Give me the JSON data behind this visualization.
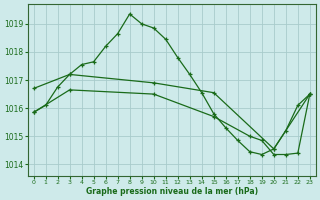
{
  "title": "Graphe pression niveau de la mer (hPa)",
  "bg_color": "#ceeaea",
  "grid_color": "#a8cccc",
  "line_color": "#1a6b1a",
  "spine_color": "#336633",
  "xlim": [
    -0.5,
    23.5
  ],
  "ylim": [
    1013.6,
    1019.7
  ],
  "yticks": [
    1014,
    1015,
    1016,
    1017,
    1018,
    1019
  ],
  "xticks": [
    0,
    1,
    2,
    3,
    4,
    5,
    6,
    7,
    8,
    9,
    10,
    11,
    12,
    13,
    14,
    15,
    16,
    17,
    18,
    19,
    20,
    21,
    22,
    23
  ],
  "series1": [
    [
      0,
      1015.85
    ],
    [
      1,
      1016.1
    ],
    [
      2,
      1016.75
    ],
    [
      3,
      1017.2
    ],
    [
      4,
      1017.55
    ],
    [
      5,
      1017.65
    ],
    [
      6,
      1018.2
    ],
    [
      7,
      1018.65
    ],
    [
      8,
      1019.35
    ],
    [
      9,
      1019.0
    ],
    [
      10,
      1018.85
    ],
    [
      11,
      1018.45
    ],
    [
      12,
      1017.8
    ],
    [
      13,
      1017.2
    ],
    [
      14,
      1016.55
    ],
    [
      15,
      1015.8
    ],
    [
      16,
      1015.3
    ],
    [
      17,
      1014.85
    ],
    [
      18,
      1014.45
    ],
    [
      19,
      1014.35
    ],
    [
      20,
      1014.55
    ],
    [
      21,
      1015.2
    ],
    [
      22,
      1016.1
    ],
    [
      23,
      1016.5
    ]
  ],
  "series2": [
    [
      0,
      1016.7
    ],
    [
      3,
      1017.2
    ],
    [
      10,
      1016.9
    ],
    [
      15,
      1016.55
    ],
    [
      20,
      1014.55
    ],
    [
      23,
      1016.5
    ]
  ],
  "series3": [
    [
      0,
      1015.85
    ],
    [
      3,
      1016.65
    ],
    [
      10,
      1016.5
    ],
    [
      15,
      1015.7
    ],
    [
      18,
      1015.0
    ],
    [
      19,
      1014.85
    ],
    [
      20,
      1014.35
    ],
    [
      21,
      1014.35
    ],
    [
      22,
      1014.4
    ],
    [
      23,
      1016.5
    ]
  ]
}
